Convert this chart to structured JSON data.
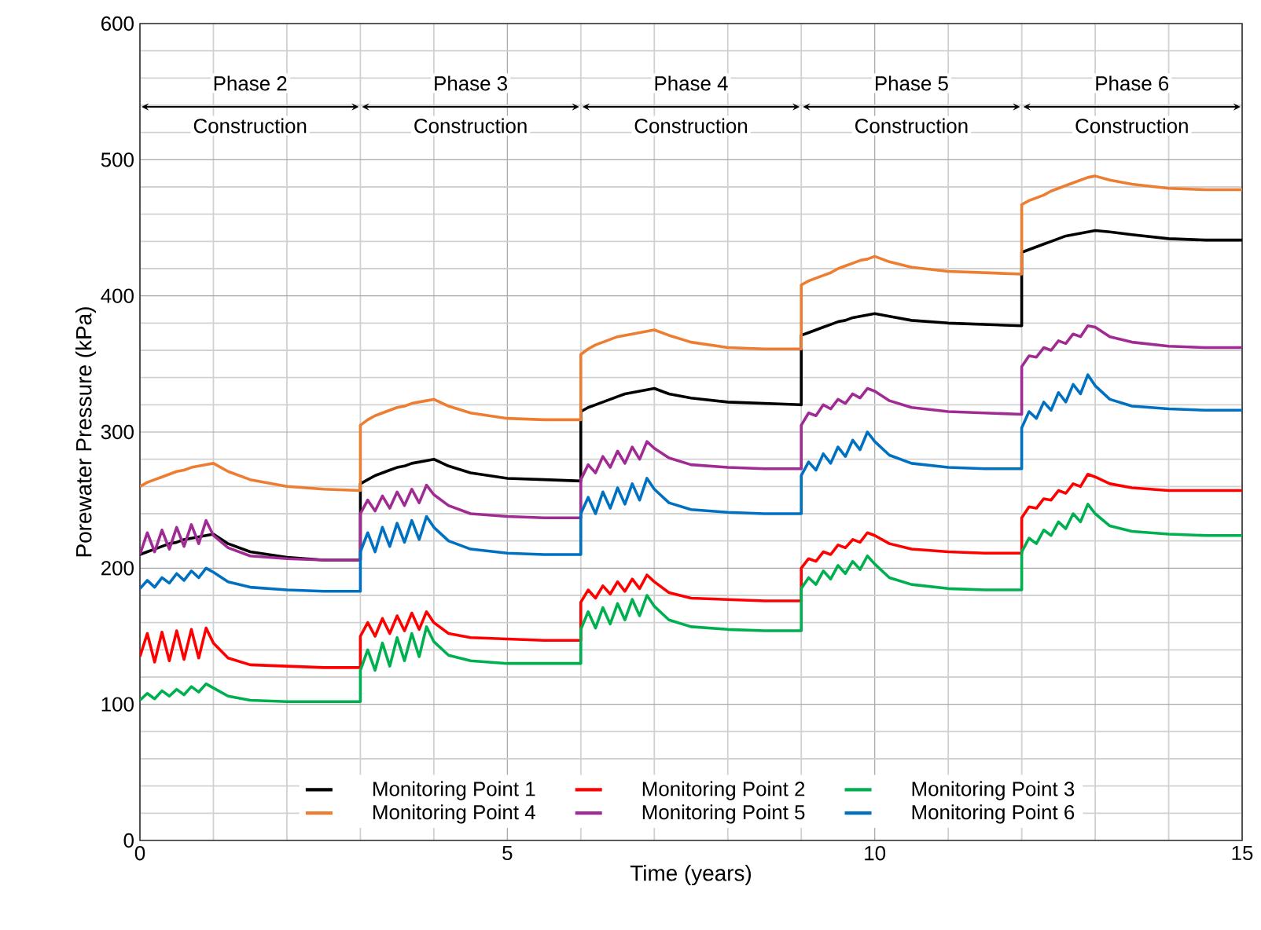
{
  "chart_data": {
    "type": "line",
    "xlabel": "Time (years)",
    "ylabel": "Porewater Pressure (kPa)",
    "xlim": [
      0,
      15
    ],
    "xticks": [
      0,
      5,
      10,
      15
    ],
    "ylim": [
      0,
      600
    ],
    "yticks": [
      0,
      100,
      200,
      300,
      400,
      500,
      600
    ],
    "grid": true,
    "legend": "bottom",
    "marker": "none",
    "line_style": "solid",
    "x": [
      0,
      0.1,
      0.2,
      0.3,
      0.4,
      0.5,
      0.6,
      0.7,
      0.8,
      0.9,
      1,
      1.2,
      1.5,
      2,
      2.5,
      3,
      3,
      3.1,
      3.2,
      3.3,
      3.4,
      3.5,
      3.6,
      3.7,
      3.8,
      3.9,
      4,
      4.2,
      4.5,
      5,
      5.5,
      6,
      6,
      6.1,
      6.2,
      6.3,
      6.4,
      6.5,
      6.6,
      6.7,
      6.8,
      6.9,
      7,
      7.2,
      7.5,
      8,
      8.5,
      9,
      9,
      9.1,
      9.2,
      9.3,
      9.4,
      9.5,
      9.6,
      9.7,
      9.8,
      9.9,
      10,
      10.2,
      10.5,
      11,
      11.5,
      12,
      12,
      12.1,
      12.2,
      12.3,
      12.4,
      12.5,
      12.6,
      12.7,
      12.8,
      12.9,
      13,
      13.2,
      13.5,
      14,
      14.5,
      15
    ],
    "series": [
      {
        "name": "Monitoring Point 1",
        "color": "#000000",
        "values": [
          210,
          212,
          214,
          216,
          218,
          219,
          221,
          222,
          223,
          224,
          225,
          218,
          212,
          208,
          206,
          206,
          262,
          265,
          268,
          270,
          272,
          274,
          275,
          277,
          278,
          279,
          280,
          275,
          270,
          266,
          265,
          264,
          315,
          318,
          320,
          322,
          324,
          326,
          328,
          329,
          330,
          331,
          332,
          328,
          325,
          322,
          321,
          320,
          371,
          373,
          375,
          377,
          379,
          381,
          382,
          384,
          385,
          386,
          387,
          385,
          382,
          380,
          379,
          378,
          432,
          434,
          436,
          438,
          440,
          442,
          444,
          445,
          446,
          447,
          448,
          447,
          445,
          442,
          441,
          441
        ]
      },
      {
        "name": "Monitoring Point 2",
        "color": "#ff0000",
        "values": [
          135,
          152,
          131,
          153,
          132,
          154,
          133,
          155,
          134,
          156,
          145,
          134,
          129,
          128,
          127,
          127,
          150,
          160,
          150,
          163,
          152,
          165,
          154,
          167,
          155,
          168,
          160,
          152,
          149,
          148,
          147,
          147,
          175,
          184,
          178,
          187,
          181,
          190,
          183,
          192,
          185,
          195,
          190,
          182,
          178,
          177,
          176,
          176,
          200,
          207,
          205,
          212,
          210,
          217,
          215,
          221,
          219,
          226,
          224,
          218,
          214,
          212,
          211,
          211,
          237,
          245,
          244,
          251,
          250,
          257,
          255,
          262,
          260,
          269,
          267,
          262,
          259,
          257,
          257,
          257
        ]
      },
      {
        "name": "Monitoring Point 3",
        "color": "#00b050",
        "values": [
          103,
          108,
          104,
          110,
          106,
          111,
          107,
          113,
          109,
          115,
          112,
          106,
          103,
          102,
          102,
          102,
          125,
          140,
          125,
          145,
          128,
          149,
          132,
          152,
          135,
          157,
          146,
          136,
          132,
          130,
          130,
          130,
          155,
          168,
          156,
          171,
          159,
          174,
          162,
          177,
          165,
          180,
          172,
          162,
          157,
          155,
          154,
          154,
          185,
          193,
          188,
          198,
          192,
          202,
          196,
          205,
          199,
          209,
          203,
          193,
          188,
          185,
          184,
          184,
          212,
          222,
          218,
          228,
          224,
          234,
          229,
          240,
          234,
          247,
          240,
          231,
          227,
          225,
          224,
          224
        ]
      },
      {
        "name": "Monitoring Point 4",
        "color": "#ed7d31",
        "values": [
          260,
          263,
          265,
          267,
          269,
          271,
          272,
          274,
          275,
          276,
          277,
          271,
          265,
          260,
          258,
          257,
          305,
          309,
          312,
          314,
          316,
          318,
          319,
          321,
          322,
          323,
          324,
          319,
          314,
          310,
          309,
          309,
          357,
          361,
          364,
          366,
          368,
          370,
          371,
          372,
          373,
          374,
          375,
          371,
          366,
          362,
          361,
          361,
          408,
          411,
          413,
          415,
          417,
          420,
          422,
          424,
          426,
          427,
          429,
          425,
          421,
          418,
          417,
          416,
          467,
          470,
          472,
          474,
          477,
          479,
          481,
          483,
          485,
          487,
          488,
          485,
          482,
          479,
          478,
          478
        ]
      },
      {
        "name": "Monitoring Point 5",
        "color": "#a02b93",
        "values": [
          210,
          226,
          212,
          228,
          214,
          230,
          216,
          232,
          218,
          235,
          224,
          215,
          209,
          207,
          206,
          206,
          240,
          250,
          242,
          253,
          244,
          256,
          246,
          258,
          248,
          261,
          254,
          246,
          240,
          238,
          237,
          237,
          265,
          276,
          270,
          282,
          274,
          286,
          277,
          289,
          280,
          293,
          288,
          281,
          276,
          274,
          273,
          273,
          305,
          314,
          312,
          320,
          317,
          324,
          321,
          328,
          325,
          332,
          330,
          323,
          318,
          315,
          314,
          313,
          348,
          356,
          355,
          362,
          360,
          367,
          365,
          372,
          370,
          378,
          377,
          370,
          366,
          363,
          362,
          362
        ]
      },
      {
        "name": "Monitoring Point 6",
        "color": "#0070c0",
        "values": [
          185,
          191,
          186,
          193,
          189,
          196,
          191,
          198,
          193,
          200,
          197,
          190,
          186,
          184,
          183,
          183,
          212,
          226,
          212,
          230,
          216,
          233,
          219,
          235,
          221,
          238,
          230,
          220,
          214,
          211,
          210,
          210,
          240,
          252,
          240,
          256,
          244,
          259,
          247,
          262,
          250,
          266,
          258,
          248,
          243,
          241,
          240,
          240,
          268,
          278,
          272,
          284,
          277,
          289,
          282,
          294,
          287,
          300,
          293,
          283,
          277,
          274,
          273,
          273,
          303,
          315,
          310,
          322,
          316,
          329,
          322,
          335,
          328,
          342,
          334,
          324,
          319,
          317,
          316,
          316
        ]
      }
    ],
    "annotations": [
      "Phase 2",
      "Construction",
      "Phase 3",
      "Construction",
      "Phase 4",
      "Construction",
      "Phase 5",
      "Construction",
      "Phase 6",
      "Construction"
    ]
  }
}
